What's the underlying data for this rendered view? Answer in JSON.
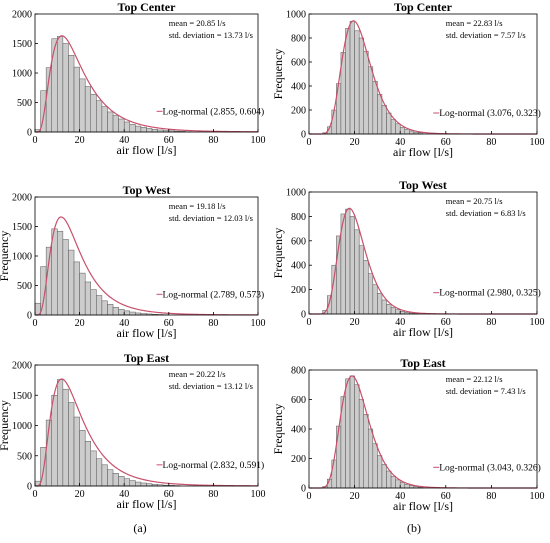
{
  "panel_labels": [
    "(a)",
    "(b)"
  ],
  "colors": {
    "bar_fill": "#cccccc",
    "bar_stroke": "#555555",
    "fit_line": "#c8506c",
    "axis": "#000000"
  },
  "chart_data": [
    {
      "type": "bar",
      "title": "Top Center",
      "xlabel": "air flow [l/s]",
      "ylabel": "",
      "xlim": [
        0,
        100
      ],
      "ylim": [
        0,
        2000
      ],
      "xticks": [
        0,
        20,
        40,
        60,
        80,
        100
      ],
      "yticks": [
        0,
        500,
        1000,
        1500,
        2000
      ],
      "stats": [
        "mean = 20.85 l/s",
        "std. deviation = 13.73 l/s"
      ],
      "legend": "Log-normal (2.855, 0.604)",
      "bin_width": 2.5,
      "values": [
        40,
        700,
        1090,
        1580,
        1620,
        1500,
        1300,
        1100,
        900,
        770,
        640,
        530,
        430,
        340,
        280,
        220,
        170,
        130,
        100,
        80,
        60,
        45,
        35,
        25,
        20,
        15,
        10,
        5
      ]
    },
    {
      "type": "bar",
      "title": "Top Center",
      "xlabel": "air flow [l/s]",
      "ylabel": "Frequency",
      "xlim": [
        0,
        100
      ],
      "ylim": [
        0,
        1000
      ],
      "xticks": [
        0,
        20,
        40,
        60,
        80,
        100
      ],
      "yticks": [
        0,
        200,
        400,
        600,
        800,
        1000
      ],
      "stats": [
        "mean = 22.83 l/s",
        "std. deviation = 7.57 l/s"
      ],
      "legend": "Log-normal (3.076, 0.323)",
      "bin_width": 2,
      "values": [
        0,
        0,
        0,
        10,
        60,
        200,
        420,
        680,
        880,
        940,
        860,
        800,
        690,
        560,
        440,
        330,
        240,
        175,
        120,
        85,
        55,
        40,
        25,
        15,
        10
      ]
    },
    {
      "type": "bar",
      "title": "Top West",
      "xlabel": "air flow [l/s]",
      "ylabel": "Frequency",
      "xlim": [
        0,
        100
      ],
      "ylim": [
        0,
        2000
      ],
      "xticks": [
        0,
        20,
        40,
        60,
        80,
        100
      ],
      "yticks": [
        0,
        500,
        1000,
        1500,
        2000
      ],
      "stats": [
        "mean = 19.18 l/s",
        "std. deviation = 12.03 l/s"
      ],
      "legend": "Log-normal (2.789, 0.573)",
      "bin_width": 2.5,
      "values": [
        200,
        820,
        1150,
        1460,
        1420,
        1280,
        1100,
        900,
        710,
        560,
        430,
        330,
        240,
        180,
        130,
        95,
        70,
        50,
        35,
        25,
        18,
        12,
        8,
        5
      ]
    },
    {
      "type": "bar",
      "title": "Top West",
      "xlabel": "air flow [l/s]",
      "ylabel": "Frequency",
      "xlim": [
        0,
        100
      ],
      "ylim": [
        0,
        1000
      ],
      "xticks": [
        0,
        20,
        40,
        60,
        80,
        100
      ],
      "yticks": [
        0,
        200,
        400,
        600,
        800,
        1000
      ],
      "stats": [
        "mean = 20.75 l/s",
        "std. deviation = 6.83 l/s"
      ],
      "legend": "Log-normal (2.980, 0.325)",
      "bin_width": 2,
      "values": [
        0,
        0,
        0,
        30,
        150,
        400,
        640,
        820,
        860,
        800,
        690,
        560,
        440,
        330,
        240,
        170,
        115,
        80,
        55,
        35,
        22,
        14,
        8,
        5
      ]
    },
    {
      "type": "bar",
      "title": "Top East",
      "xlabel": "air flow [l/s]",
      "ylabel": "Frequency",
      "xlim": [
        0,
        100
      ],
      "ylim": [
        0,
        2000
      ],
      "xticks": [
        0,
        20,
        40,
        60,
        80,
        100
      ],
      "yticks": [
        0,
        500,
        1000,
        1500,
        2000
      ],
      "stats": [
        "mean = 20.22 l/s",
        "std. deviation = 13.12 l/s"
      ],
      "legend": "Log-normal (2.832, 0.591)",
      "bin_width": 2.5,
      "values": [
        80,
        640,
        1090,
        1500,
        1760,
        1600,
        1380,
        1140,
        920,
        740,
        580,
        450,
        350,
        270,
        210,
        160,
        120,
        90,
        65,
        50,
        38,
        28,
        20,
        14,
        10,
        6
      ]
    },
    {
      "type": "bar",
      "title": "Top East",
      "xlabel": "air flow [l/s]",
      "ylabel": "Frequency",
      "xlim": [
        0,
        100
      ],
      "ylim": [
        0,
        800
      ],
      "xticks": [
        0,
        20,
        40,
        60,
        80,
        100
      ],
      "yticks": [
        0,
        200,
        400,
        600,
        800
      ],
      "stats": [
        "mean = 22.12 l/s",
        "std. deviation = 7.43 l/s"
      ],
      "legend": "Log-normal (3.043, 0.326)",
      "bin_width": 2,
      "values": [
        0,
        0,
        0,
        10,
        60,
        190,
        420,
        620,
        740,
        760,
        700,
        600,
        500,
        400,
        300,
        220,
        160,
        115,
        80,
        55,
        38,
        25,
        16,
        10,
        6
      ]
    }
  ]
}
